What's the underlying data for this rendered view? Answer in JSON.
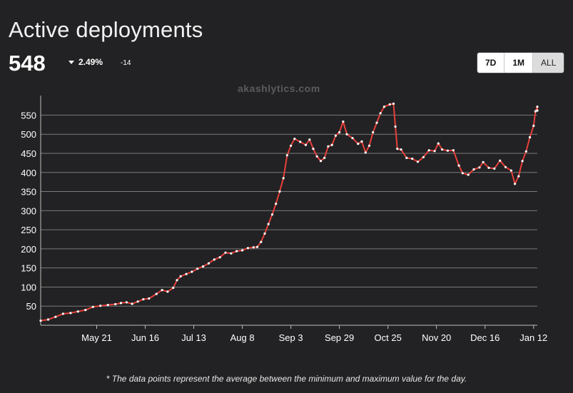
{
  "header": {
    "title": "Active deployments",
    "value": "548",
    "change_pct": "2.49%",
    "change_abs": "-14"
  },
  "range_buttons": [
    {
      "label": "7D",
      "active": false
    },
    {
      "label": "1M",
      "active": false
    },
    {
      "label": "ALL",
      "active": true
    }
  ],
  "watermark": "akashlytics.com",
  "footnote": "* The data points represent the average between the minimum and maximum value for the day.",
  "colors": {
    "background": "#222224",
    "line": "#e8403a",
    "point": "#ffffff",
    "grid": "#7a7a7a"
  },
  "chart_data": {
    "type": "line",
    "title": "Active deployments",
    "xlabel": "",
    "ylabel": "",
    "ylim": [
      0,
      590
    ],
    "yticks": [
      50,
      100,
      150,
      200,
      250,
      300,
      350,
      400,
      450,
      500,
      550
    ],
    "x_start": "2021-04-21",
    "x_end": "2022-01-12",
    "xticks": [
      "May 21",
      "Jun 16",
      "Jul 13",
      "Aug 8",
      "Sep 3",
      "Sep 29",
      "Oct 25",
      "Nov 20",
      "Dec 16",
      "Jan 12"
    ],
    "grid": true,
    "series": [
      {
        "points": [
          [
            "2021-04-21",
            12
          ],
          [
            "2021-04-25",
            15
          ],
          [
            "2021-04-29",
            22
          ],
          [
            "2021-05-03",
            30
          ],
          [
            "2021-05-07",
            32
          ],
          [
            "2021-05-11",
            36
          ],
          [
            "2021-05-15",
            40
          ],
          [
            "2021-05-19",
            48
          ],
          [
            "2021-05-23",
            51
          ],
          [
            "2021-05-27",
            53
          ],
          [
            "2021-05-31",
            55
          ],
          [
            "2021-06-03",
            58
          ],
          [
            "2021-06-06",
            60
          ],
          [
            "2021-06-09",
            56
          ],
          [
            "2021-06-12",
            62
          ],
          [
            "2021-06-15",
            68
          ],
          [
            "2021-06-18",
            70
          ],
          [
            "2021-06-22",
            82
          ],
          [
            "2021-06-25",
            92
          ],
          [
            "2021-06-28",
            88
          ],
          [
            "2021-07-01",
            98
          ],
          [
            "2021-07-03",
            118
          ],
          [
            "2021-07-05",
            128
          ],
          [
            "2021-07-08",
            134
          ],
          [
            "2021-07-11",
            140
          ],
          [
            "2021-07-14",
            148
          ],
          [
            "2021-07-17",
            154
          ],
          [
            "2021-07-20",
            162
          ],
          [
            "2021-07-23",
            172
          ],
          [
            "2021-07-26",
            178
          ],
          [
            "2021-07-29",
            190
          ],
          [
            "2021-08-01",
            188
          ],
          [
            "2021-08-04",
            194
          ],
          [
            "2021-08-07",
            196
          ],
          [
            "2021-08-10",
            202
          ],
          [
            "2021-08-13",
            204
          ],
          [
            "2021-08-15",
            205
          ],
          [
            "2021-08-17",
            218
          ],
          [
            "2021-08-19",
            240
          ],
          [
            "2021-08-21",
            265
          ],
          [
            "2021-08-23",
            290
          ],
          [
            "2021-08-25",
            318
          ],
          [
            "2021-08-27",
            350
          ],
          [
            "2021-08-29",
            385
          ],
          [
            "2021-08-31",
            445
          ],
          [
            "2021-09-02",
            470
          ],
          [
            "2021-09-04",
            488
          ],
          [
            "2021-09-07",
            480
          ],
          [
            "2021-09-10",
            472
          ],
          [
            "2021-09-12",
            486
          ],
          [
            "2021-09-14",
            462
          ],
          [
            "2021-09-16",
            442
          ],
          [
            "2021-09-18",
            430
          ],
          [
            "2021-09-20",
            438
          ],
          [
            "2021-09-22",
            468
          ],
          [
            "2021-09-24",
            472
          ],
          [
            "2021-09-26",
            496
          ],
          [
            "2021-09-28",
            505
          ],
          [
            "2021-09-30",
            533
          ],
          [
            "2021-10-02",
            500
          ],
          [
            "2021-10-05",
            490
          ],
          [
            "2021-10-08",
            475
          ],
          [
            "2021-10-10",
            481
          ],
          [
            "2021-10-12",
            452
          ],
          [
            "2021-10-14",
            470
          ],
          [
            "2021-10-16",
            505
          ],
          [
            "2021-10-18",
            530
          ],
          [
            "2021-10-20",
            555
          ],
          [
            "2021-10-22",
            572
          ],
          [
            "2021-10-25",
            578
          ],
          [
            "2021-10-27",
            580
          ],
          [
            "2021-10-28",
            520
          ],
          [
            "2021-10-29",
            462
          ],
          [
            "2021-10-31",
            460
          ],
          [
            "2021-11-03",
            438
          ],
          [
            "2021-11-06",
            436
          ],
          [
            "2021-11-09",
            428
          ],
          [
            "2021-11-12",
            440
          ],
          [
            "2021-11-15",
            458
          ],
          [
            "2021-11-18",
            456
          ],
          [
            "2021-11-20",
            476
          ],
          [
            "2021-11-22",
            460
          ],
          [
            "2021-11-25",
            457
          ],
          [
            "2021-11-28",
            458
          ],
          [
            "2021-12-01",
            418
          ],
          [
            "2021-12-03",
            398
          ],
          [
            "2021-12-06",
            394
          ],
          [
            "2021-12-09",
            408
          ],
          [
            "2021-12-12",
            413
          ],
          [
            "2021-12-14",
            427
          ],
          [
            "2021-12-17",
            412
          ],
          [
            "2021-12-20",
            410
          ],
          [
            "2021-12-23",
            431
          ],
          [
            "2021-12-26",
            414
          ],
          [
            "2021-12-29",
            405
          ],
          [
            "2021-12-31",
            370
          ],
          [
            "2022-01-02",
            390
          ],
          [
            "2022-01-04",
            430
          ],
          [
            "2022-01-06",
            455
          ],
          [
            "2022-01-08",
            492
          ],
          [
            "2022-01-10",
            522
          ],
          [
            "2022-01-11",
            560
          ],
          [
            "2022-01-12",
            572
          ],
          [
            "2022-01-12",
            562
          ]
        ]
      }
    ]
  }
}
